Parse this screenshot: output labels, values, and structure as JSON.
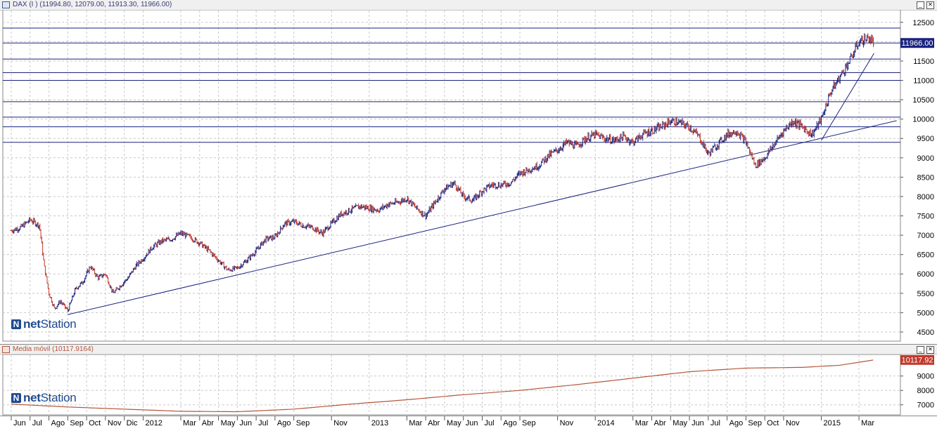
{
  "window": {
    "main_title": "DAX (I ) (11994.80, 12079.00, 11913.30, 11966.00)",
    "indicator_title": "Media móvil (10117.9164)"
  },
  "logo": {
    "mark": "N",
    "text_bold": "net",
    "text_rest": "Station"
  },
  "price_tag": "11966.00",
  "ma_tag": "10117.92",
  "colors": {
    "up": "#1a237e",
    "down": "#c0392b",
    "line": "#1a237e",
    "ma": "#b5563a",
    "price_tag_bg": "#1a237e",
    "ma_tag_bg": "#c0392b"
  },
  "chart_data": [
    {
      "type": "line",
      "title": "DAX (I ) (11994.80, 12079.00, 11913.30, 11966.00)",
      "last": {
        "open": 11994.8,
        "high": 12079.0,
        "low": 11913.3,
        "close": 11966.0
      },
      "ylim": [
        4300,
        12750
      ],
      "y_ticks": [
        4500,
        5000,
        5500,
        6000,
        6500,
        7000,
        7500,
        8000,
        8500,
        9000,
        9500,
        10000,
        10500,
        11000,
        11500,
        12000,
        12500
      ],
      "y_tick_labels": [
        "4500",
        "5000",
        "5500",
        "6000",
        "6500",
        "7000",
        "7500",
        "8000",
        "8500",
        "9000",
        "9500",
        "10000",
        "10500",
        "11000",
        "11500",
        "",
        "12500"
      ],
      "x_labels": [
        "Jun",
        "Jul",
        "Ago",
        "Sep",
        "Oct",
        "Nov",
        "Dic",
        "2012",
        "Mar",
        "Abr",
        "May",
        "Jun",
        "Jul",
        "Ago",
        "Sep",
        "Nov",
        "2013",
        "Mar",
        "Abr",
        "May",
        "Jun",
        "Jul",
        "Ago",
        "Sep",
        "Nov",
        "2014",
        "Mar",
        "Abr",
        "May",
        "Jun",
        "Jul",
        "Ago",
        "Sep",
        "Oct",
        "Nov",
        "2015",
        "Mar"
      ],
      "x_months": [
        0,
        1,
        2,
        3,
        4,
        5,
        6,
        7,
        9,
        10,
        11,
        12,
        13,
        14,
        15,
        17,
        19,
        21,
        22,
        23,
        24,
        25,
        26,
        27,
        29,
        31,
        33,
        34,
        35,
        36,
        37,
        38,
        39,
        40,
        41,
        43,
        45
      ],
      "series_points_by_month": [
        [
          0,
          7120
        ],
        [
          0.5,
          7200
        ],
        [
          1,
          7400
        ],
        [
          1.5,
          7250
        ],
        [
          1.75,
          6200
        ],
        [
          2,
          5500
        ],
        [
          2.3,
          5100
        ],
        [
          2.6,
          5300
        ],
        [
          3,
          5050
        ],
        [
          3.4,
          5600
        ],
        [
          3.8,
          5800
        ],
        [
          4.2,
          6200
        ],
        [
          4.6,
          5900
        ],
        [
          5,
          6000
        ],
        [
          5.4,
          5500
        ],
        [
          5.8,
          5700
        ],
        [
          6.2,
          5900
        ],
        [
          6.6,
          6200
        ],
        [
          7,
          6400
        ],
        [
          7.5,
          6700
        ],
        [
          8,
          6850
        ],
        [
          8.5,
          6900
        ],
        [
          9,
          7050
        ],
        [
          9.5,
          6950
        ],
        [
          10,
          6800
        ],
        [
          10.5,
          6600
        ],
        [
          11,
          6350
        ],
        [
          11.5,
          6100
        ],
        [
          12,
          6150
        ],
        [
          12.5,
          6350
        ],
        [
          13,
          6600
        ],
        [
          13.5,
          6900
        ],
        [
          14,
          6950
        ],
        [
          14.5,
          7300
        ],
        [
          15,
          7350
        ],
        [
          15.5,
          7250
        ],
        [
          16,
          7200
        ],
        [
          16.5,
          7050
        ],
        [
          17,
          7300
        ],
        [
          17.5,
          7550
        ],
        [
          18,
          7650
        ],
        [
          18.5,
          7750
        ],
        [
          19,
          7700
        ],
        [
          19.5,
          7650
        ],
        [
          20,
          7800
        ],
        [
          20.5,
          7850
        ],
        [
          21,
          7950
        ],
        [
          21.5,
          7700
        ],
        [
          22,
          7500
        ],
        [
          22.5,
          7850
        ],
        [
          23,
          8200
        ],
        [
          23.5,
          8350
        ],
        [
          24,
          8000
        ],
        [
          24.5,
          7900
        ],
        [
          25,
          8150
        ],
        [
          25.5,
          8300
        ],
        [
          26,
          8300
        ],
        [
          26.5,
          8350
        ],
        [
          27,
          8600
        ],
        [
          27.5,
          8700
        ],
        [
          28,
          8800
        ],
        [
          28.5,
          9050
        ],
        [
          29,
          9200
        ],
        [
          29.5,
          9400
        ],
        [
          30,
          9300
        ],
        [
          30.5,
          9500
        ],
        [
          31,
          9600
        ],
        [
          31.5,
          9500
        ],
        [
          32,
          9450
        ],
        [
          32.5,
          9550
        ],
        [
          33,
          9400
        ],
        [
          33.5,
          9600
        ],
        [
          34,
          9700
        ],
        [
          34.5,
          9800
        ],
        [
          35,
          9950
        ],
        [
          35.5,
          9900
        ],
        [
          36,
          9800
        ],
        [
          36.5,
          9550
        ],
        [
          37,
          9100
        ],
        [
          37.5,
          9350
        ],
        [
          38,
          9600
        ],
        [
          38.5,
          9700
        ],
        [
          39,
          9400
        ],
        [
          39.5,
          8800
        ],
        [
          40,
          9000
        ],
        [
          40.5,
          9350
        ],
        [
          41,
          9700
        ],
        [
          41.5,
          9950
        ],
        [
          42,
          9800
        ],
        [
          42.5,
          9600
        ],
        [
          43,
          10000
        ],
        [
          43.5,
          10700
        ],
        [
          44,
          11100
        ],
        [
          44.5,
          11500
        ],
        [
          45,
          12000
        ],
        [
          45.5,
          12100
        ],
        [
          45.8,
          11966
        ]
      ],
      "support_lines": [
        {
          "from": [
            3,
            4950
          ],
          "to": [
            47,
            9960
          ]
        },
        {
          "from": [
            43,
            9450
          ],
          "to": [
            45.8,
            11700
          ]
        }
      ],
      "horizontal_levels": [
        12350,
        11966,
        11550,
        11200,
        11000,
        10450,
        10050,
        9800,
        9400
      ]
    },
    {
      "type": "line",
      "title": "Media móvil (10117.9164)",
      "last_value": 10117.9164,
      "ylim": [
        6400,
        10300
      ],
      "y_ticks": [
        7000,
        8000,
        9000
      ],
      "y_tick_labels": [
        "7000",
        "8000",
        "9000"
      ],
      "series_points_by_month": [
        [
          0,
          7050
        ],
        [
          3,
          6850
        ],
        [
          6,
          6700
        ],
        [
          9,
          6550
        ],
        [
          12,
          6520
        ],
        [
          15,
          6700
        ],
        [
          18,
          7050
        ],
        [
          21,
          7350
        ],
        [
          24,
          7700
        ],
        [
          27,
          8000
        ],
        [
          30,
          8400
        ],
        [
          33,
          8850
        ],
        [
          36,
          9300
        ],
        [
          39,
          9550
        ],
        [
          42,
          9600
        ],
        [
          44,
          9750
        ],
        [
          45.8,
          10117.92
        ]
      ]
    }
  ]
}
